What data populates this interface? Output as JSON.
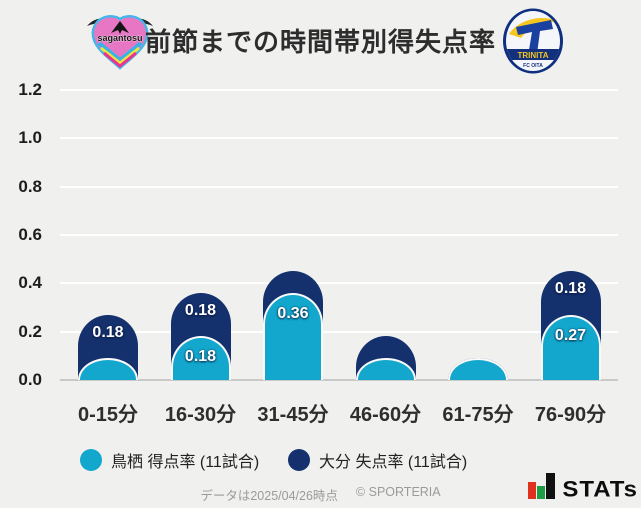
{
  "header": {
    "title": "前節までの時間帯別得失点率",
    "home_logo": {
      "name": "sagan-tosu-crest",
      "text": "sagantosu"
    },
    "away_logo": {
      "name": "oita-trinita-crest",
      "text": "TRINITA",
      "subtext": "FC OITA"
    }
  },
  "chart_data": {
    "type": "bar",
    "stacked": true,
    "title": "前節までの時間帯別得失点率",
    "categories": [
      "0-15分",
      "16-30分",
      "31-45分",
      "46-60分",
      "61-75分",
      "76-90分"
    ],
    "series": [
      {
        "key": "tosu-goal-rate",
        "name": "鳥栖 得点率 (11試合)",
        "color": "#13a7cd",
        "values": [
          0.09,
          0.18,
          0.36,
          0.09,
          0.09,
          0.27
        ],
        "labels": [
          "",
          "0.18",
          "0.36",
          "",
          "",
          "0.27"
        ]
      },
      {
        "key": "oita-concede-rate",
        "name": "大分 失点率 (11試合)",
        "color": "#14316e",
        "values": [
          0.18,
          0.18,
          0.09,
          0.09,
          0,
          0.18
        ],
        "labels": [
          "0.18",
          "0.18",
          "",
          "",
          "",
          "0.18"
        ]
      }
    ],
    "xlabel": "",
    "ylabel": "",
    "ylim": [
      0,
      1.2
    ],
    "yticks": [
      1.2,
      1.0,
      0.8,
      0.6,
      0.4,
      0.2,
      0.0
    ],
    "grid": true,
    "legend_position": "bottom"
  },
  "legend": [
    {
      "label": "鳥栖 得点率 (11試合)",
      "color": "#13a7cd"
    },
    {
      "label": "大分 失点率 (11試合)",
      "color": "#14316e"
    }
  ],
  "footer": {
    "note": "データは2025/04/26時点",
    "copyright": "© SPORTERIA",
    "brand": "STATs"
  }
}
